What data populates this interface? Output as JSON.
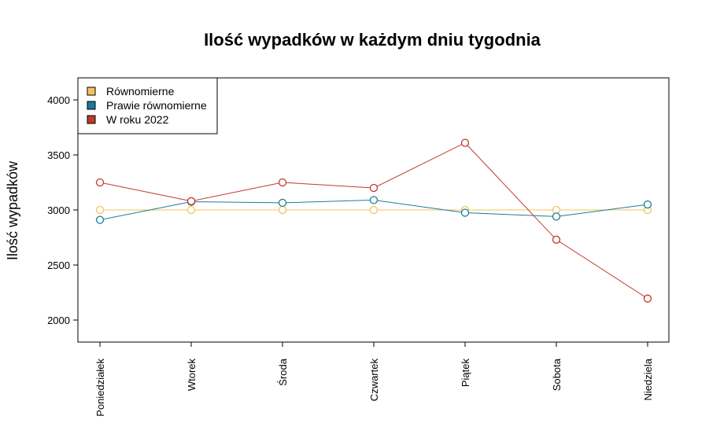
{
  "chart_data": {
    "type": "line",
    "title": "Ilość wypadków w każdym dniu tygodnia",
    "xlabel": "",
    "ylabel": "Ilość wypadków",
    "categories": [
      "Poniedziałek",
      "Wtorek",
      "Środa",
      "Czwartek",
      "Piątek",
      "Sobota",
      "Niedziela"
    ],
    "yticks": [
      "2000",
      "2500",
      "3000",
      "3500",
      "4000"
    ],
    "ylim": [
      1800,
      4200
    ],
    "grid": false,
    "legend": "top-left",
    "series": [
      {
        "name": "Równomierne",
        "color": "#f5c35a",
        "values": [
          3000,
          3000,
          3000,
          3000,
          3000,
          3000,
          3000
        ]
      },
      {
        "name": "Prawie równomierne",
        "color": "#1a7c98",
        "values": [
          2910,
          3075,
          3065,
          3090,
          2975,
          2940,
          3050
        ]
      },
      {
        "name": "W roku 2022",
        "color": "#c0392b",
        "values": [
          3250,
          3080,
          3250,
          3200,
          3610,
          2730,
          2195
        ]
      }
    ]
  }
}
